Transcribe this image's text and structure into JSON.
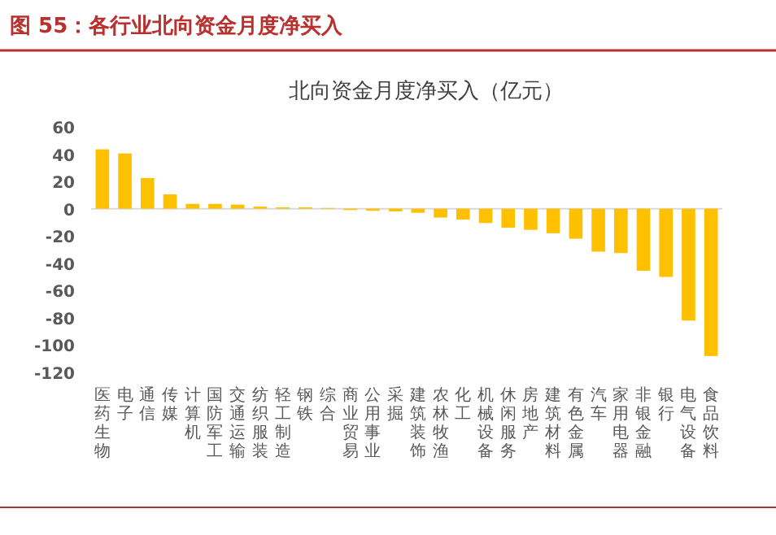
{
  "chart_data": {
    "type": "bar",
    "title": "图 55：各行业北向资金月度净买入",
    "subtitle": "北向资金月度净买入（亿元）",
    "categories": [
      "医药生物",
      "电子",
      "通信",
      "传媒",
      "计算机",
      "国防军工",
      "交通运输",
      "纺织服装",
      "轻工制造",
      "钢铁",
      "综合",
      "商业贸易",
      "公用事业",
      "采掘",
      "建筑装饰",
      "农林牧渔",
      "化工",
      "机械设备",
      "休闲服务",
      "房地产",
      "建筑材料",
      "有色金属",
      "汽车",
      "家用电器",
      "非银金融",
      "银行",
      "电气设备",
      "食品饮料"
    ],
    "values": [
      43.5,
      40.5,
      22.5,
      10.5,
      3.5,
      3.5,
      3,
      1.5,
      1,
      1,
      0.5,
      -1,
      -1.5,
      -2,
      -3,
      -6.5,
      -8,
      -10.5,
      -14,
      -15.5,
      -18,
      -22,
      -31.5,
      -32.5,
      -45.5,
      -50,
      -82,
      -108
    ],
    "color": "#ffc000",
    "ylim": [
      -120,
      60
    ],
    "yticks": [
      -120,
      -100,
      -80,
      -60,
      -40,
      -20,
      0,
      20,
      40,
      60
    ]
  }
}
